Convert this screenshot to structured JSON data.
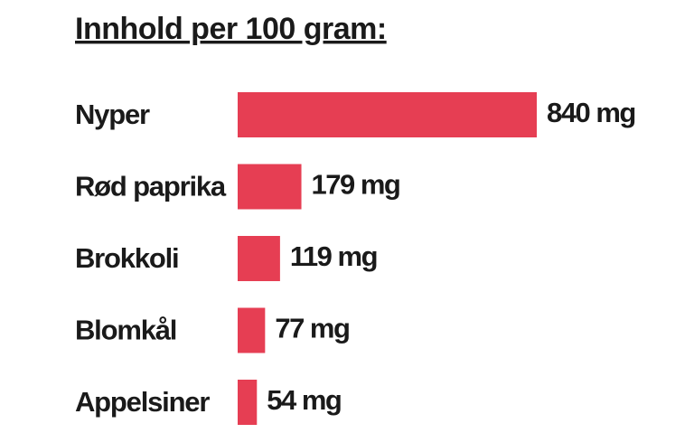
{
  "chart_data": {
    "type": "bar",
    "title": "Innhold per 100 gram:",
    "categories": [
      "Nyper",
      "Rød paprika",
      "Brokkoli",
      "Blomkål",
      "Appelsiner"
    ],
    "values": [
      840,
      179,
      119,
      77,
      54
    ],
    "value_labels": [
      "840 mg",
      "179 mg",
      "119 mg",
      "77 mg",
      "54 mg"
    ],
    "color": "#e63e53"
  }
}
